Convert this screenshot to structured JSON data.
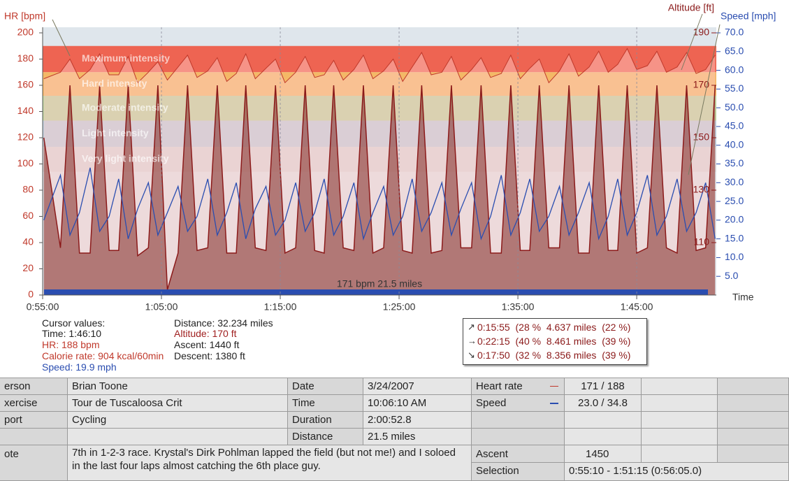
{
  "chart_data": {
    "type": "line",
    "ylabel": "HR [bpm]",
    "y2label": "Altitude [ft]",
    "y3label": "Speed [mph]",
    "xlabel": "Time",
    "x": [
      55.1,
      56.5,
      57.3,
      58.1,
      59.0,
      59.8,
      60.6,
      61.4,
      62.2,
      63.0,
      63.9,
      64.7,
      65.5,
      66.4,
      67.2,
      68.0,
      68.9,
      69.7,
      70.5,
      71.3,
      72.1,
      72.9,
      73.8,
      74.6,
      75.4,
      76.3,
      77.1,
      77.9,
      78.7,
      79.5,
      80.3,
      81.2,
      82.0,
      82.8,
      83.7,
      84.5,
      85.3,
      86.1,
      86.9,
      87.7,
      88.6,
      89.4,
      90.2,
      91.1,
      91.9,
      92.7,
      93.6,
      94.4,
      95.2,
      96.0,
      96.8,
      97.6,
      98.5,
      99.3,
      100.1,
      101.0,
      101.8,
      102.6,
      103.4,
      104.2,
      105.0,
      105.9,
      106.7,
      107.5,
      108.4,
      109.2,
      110.0,
      110.8,
      111.6
    ],
    "xlim": [
      55,
      111.7
    ],
    "xticks": [
      {
        "value": 55,
        "label": "0:55:00"
      },
      {
        "value": 65,
        "label": "1:05:00"
      },
      {
        "value": 75,
        "label": "1:15:00"
      },
      {
        "value": 85,
        "label": "1:25:00"
      },
      {
        "value": 95,
        "label": "1:35:00"
      },
      {
        "value": 105,
        "label": "1:45:00"
      }
    ],
    "ylim": [
      0,
      200
    ],
    "yticks": [
      0,
      20,
      40,
      60,
      80,
      100,
      120,
      140,
      160,
      180,
      200
    ],
    "y2lim": [
      90,
      190
    ],
    "y2ticks": [
      110,
      130,
      150,
      170,
      190
    ],
    "y3lim": [
      0,
      70
    ],
    "y3ticks": [
      {
        "value": 5,
        "label": "5.0"
      },
      {
        "value": 10,
        "label": "10.0"
      },
      {
        "value": 15,
        "label": "15.0"
      },
      {
        "value": 20,
        "label": "20.0"
      },
      {
        "value": 25,
        "label": "25.0"
      },
      {
        "value": 30,
        "label": "30.0"
      },
      {
        "value": 35,
        "label": "35.0"
      },
      {
        "value": 40,
        "label": "40.0"
      },
      {
        "value": 45,
        "label": "45.0"
      },
      {
        "value": 50,
        "label": "50.0"
      },
      {
        "value": 55,
        "label": "55.0"
      },
      {
        "value": 60,
        "label": "60.0"
      },
      {
        "value": 65,
        "label": "65.0"
      },
      {
        "value": 70,
        "label": "70.0"
      }
    ],
    "zones": [
      {
        "label": "Maximum intensity",
        "from": 170,
        "to": 190,
        "color": "#ee6452"
      },
      {
        "label": "Hard intensity",
        "from": 152,
        "to": 170,
        "color": "#f4b866"
      },
      {
        "label": "Moderate intensity",
        "from": 133,
        "to": 152,
        "color": "#bcd59e"
      },
      {
        "label": "Light intensity",
        "from": 113,
        "to": 133,
        "color": "#bcd0e0"
      },
      {
        "label": "Very light intensity",
        "from": 94,
        "to": 113,
        "color": "#d9d9dc"
      }
    ],
    "series": [
      {
        "axis": "y",
        "color": "#c0392b",
        "values": [
          165,
          170,
          180,
          165,
          172,
          184,
          168,
          168,
          182,
          162,
          170,
          178,
          164,
          174,
          183,
          166,
          171,
          181,
          163,
          169,
          184,
          165,
          173,
          180,
          162,
          170,
          182,
          166,
          168,
          179,
          164,
          172,
          183,
          165,
          171,
          180,
          163,
          174,
          185,
          168,
          170,
          182,
          164,
          172,
          181,
          166,
          169,
          183,
          165,
          173,
          180,
          162,
          171,
          184,
          167,
          174,
          186,
          170,
          176,
          188,
          172,
          175,
          186,
          170,
          174,
          185,
          169,
          172,
          183
        ]
      },
      {
        "axis": "y2",
        "color": "#8b1a1a",
        "values": [
          150,
          108,
          170,
          106,
          106,
          170,
          107,
          107,
          170,
          105,
          108,
          170,
          92,
          106,
          170,
          107,
          108,
          170,
          106,
          106,
          170,
          108,
          107,
          170,
          106,
          108,
          170,
          107,
          106,
          170,
          108,
          107,
          170,
          106,
          108,
          170,
          107,
          106,
          170,
          106,
          107,
          170,
          108,
          108,
          170,
          106,
          106,
          170,
          107,
          107,
          170,
          108,
          108,
          170,
          106,
          106,
          170,
          107,
          107,
          170,
          106,
          108,
          170,
          108,
          106,
          170,
          107,
          108,
          170
        ]
      },
      {
        "axis": "y3",
        "color": "#2a4db0",
        "values": [
          20,
          32,
          16,
          22,
          34,
          17,
          21,
          31,
          15,
          23,
          30,
          16,
          22,
          29,
          17,
          21,
          31,
          16,
          22,
          30,
          15,
          23,
          29,
          16,
          20,
          30,
          17,
          22,
          31,
          16,
          21,
          30,
          15,
          22,
          29,
          16,
          21,
          31,
          17,
          22,
          30,
          16,
          23,
          30,
          15,
          21,
          32,
          16,
          22,
          31,
          17,
          21,
          29,
          16,
          22,
          30,
          15,
          21,
          31,
          16,
          22,
          32,
          16,
          21,
          31,
          17,
          22,
          30,
          15
        ]
      }
    ],
    "summary_label": "171 bpm 21.5 miles"
  },
  "info": {
    "cursor_left": [
      "Cursor values:",
      "Time: 1:46:10",
      "HR: 188 bpm",
      "Calorie rate: 904 kcal/60min",
      "Speed: 19.9 mph"
    ],
    "cursor_right": [
      "Distance: 32.234 miles",
      "Altitude: 170 ft",
      "Ascent: 1440 ft",
      "Descent: 1380 ft"
    ]
  },
  "selection": [
    "0:15:55  (28 %  4.637 miles  (22 %)",
    "0:22:15  (40 %  8.461 miles  (39 %)",
    "0:17:50  (32 %  8.356 miles  (39 %)"
  ],
  "table": {
    "rows": [
      [
        "erson",
        "Brian Toone",
        "Date",
        "3/24/2007",
        "Heart rate",
        "171 / 188"
      ],
      [
        "xercise",
        "Tour de Tuscaloosa Crit",
        "Time",
        "10:06:10 AM",
        "Speed",
        "23.0 / 34.8"
      ],
      [
        "port",
        "Cycling",
        "Duration",
        "2:00:52.8"
      ],
      [
        "Distance",
        "21.5 miles"
      ],
      [
        "ote",
        "7th in 1-2-3 race. Krystal's Dirk Pohlman lapped the field (but not me!) and I soloed in the last four laps almost catching the 6th place guy.",
        "Ascent",
        "1450"
      ],
      [
        "Selection",
        "0:55:10 - 1:51:15 (0:56:05.0)"
      ]
    ]
  }
}
